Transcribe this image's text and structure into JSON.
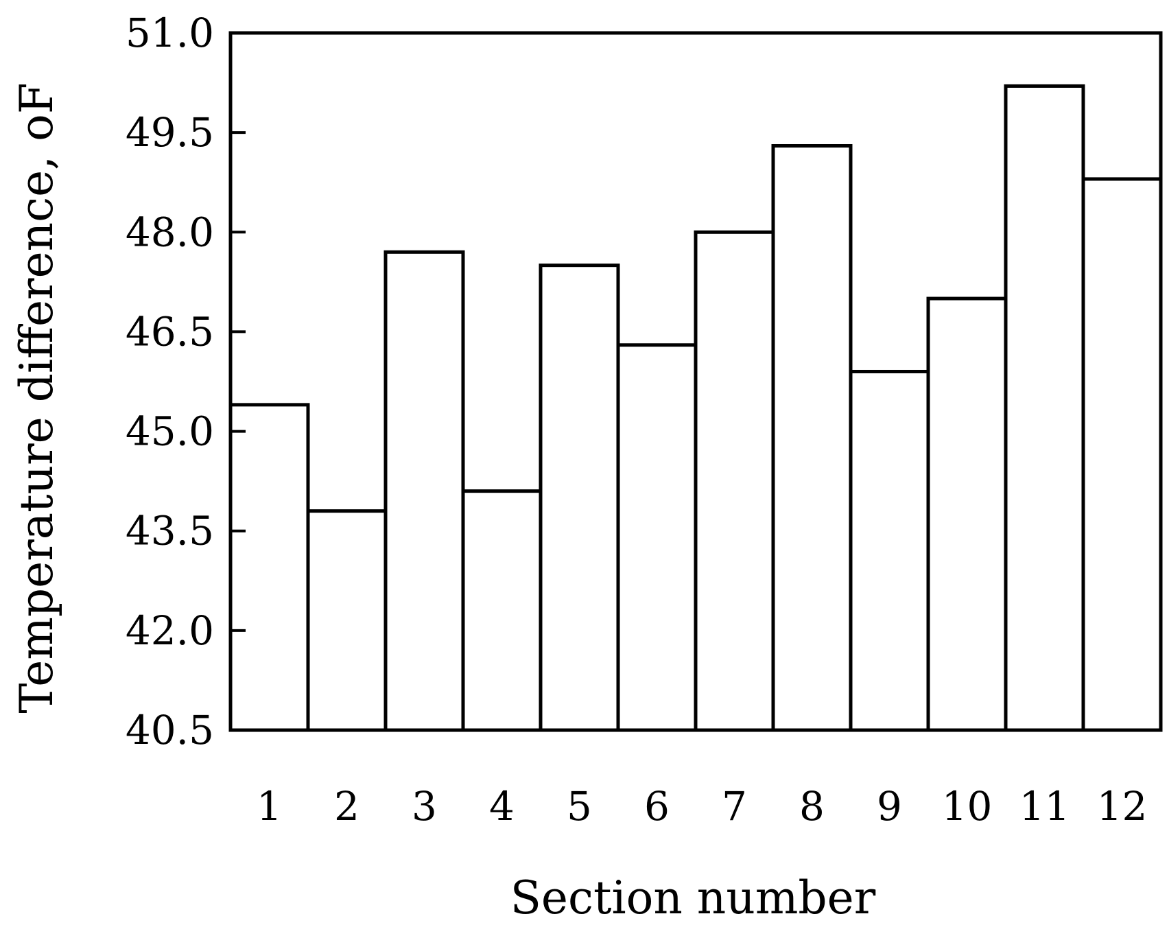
{
  "chart_data": {
    "type": "bar",
    "categories": [
      "1",
      "2",
      "3",
      "4",
      "5",
      "6",
      "7",
      "8",
      "9",
      "10",
      "11",
      "12"
    ],
    "values": [
      45.4,
      43.8,
      47.7,
      44.1,
      47.5,
      46.3,
      48.0,
      49.3,
      45.9,
      47.0,
      50.2,
      48.8
    ],
    "title": "",
    "xlabel": "Section number",
    "ylabel": "Temperature difference, oF",
    "ylim": [
      40.5,
      51.0
    ],
    "yticks": [
      "40.5",
      "42.0",
      "43.5",
      "45.0",
      "46.5",
      "48.0",
      "49.5",
      "51.0"
    ],
    "grid": false,
    "bar_fill": "#ffffff",
    "bar_stroke": "#000000"
  }
}
